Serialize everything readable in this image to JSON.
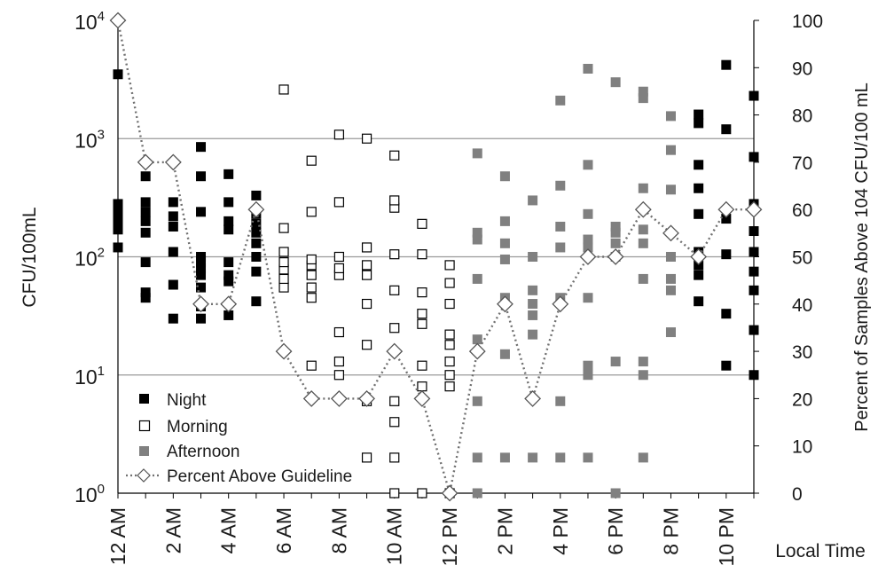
{
  "chart_data": {
    "type": "scatter",
    "title": "",
    "ylabel": "CFU/100mL",
    "y2label": "Percent  of Samples Above 104 CFU/100 mL",
    "xlabel": "Local Time",
    "y_scale": "log",
    "ylim": [
      1,
      10000
    ],
    "y2lim": [
      0,
      100
    ],
    "grid": "horizontal at each decade",
    "legend_position": "bottom-left",
    "y_ticks": [
      {
        "base": "10",
        "exp": "0"
      },
      {
        "base": "10",
        "exp": "1"
      },
      {
        "base": "10",
        "exp": "2"
      },
      {
        "base": "10",
        "exp": "3"
      },
      {
        "base": "10",
        "exp": "4"
      }
    ],
    "y2_ticks": [
      "0",
      "10",
      "20",
      "30",
      "40",
      "50",
      "60",
      "70",
      "80",
      "90",
      "100"
    ],
    "x_ticks": [
      "12 AM",
      "2 AM",
      "4 AM",
      "6 AM",
      "8 AM",
      "10 AM",
      "12 PM",
      "2 PM",
      "4 PM",
      "6 PM",
      "8 PM",
      "10 PM"
    ],
    "x_tick_hours": [
      0,
      2,
      4,
      6,
      8,
      10,
      12,
      14,
      16,
      18,
      20,
      22
    ],
    "x_range": [
      0,
      23
    ],
    "colors": {
      "night": "#000000",
      "morning": "#ffffff",
      "afternoon": "#808080",
      "percent_line": "#707070"
    },
    "series": [
      {
        "name": "Night",
        "marker": "filled-square",
        "points": [
          [
            0,
            3500
          ],
          [
            0,
            120
          ],
          [
            0,
            170
          ],
          [
            0,
            200
          ],
          [
            0,
            240
          ],
          [
            0,
            280
          ],
          [
            1,
            45
          ],
          [
            1,
            50
          ],
          [
            1,
            90
          ],
          [
            1,
            160
          ],
          [
            1,
            200
          ],
          [
            1,
            240
          ],
          [
            1,
            290
          ],
          [
            1,
            480
          ],
          [
            2,
            30
          ],
          [
            2,
            58
          ],
          [
            2,
            110
          ],
          [
            2,
            180
          ],
          [
            2,
            220
          ],
          [
            2,
            290
          ],
          [
            3,
            30
          ],
          [
            3,
            38
          ],
          [
            3,
            55
          ],
          [
            3,
            70
          ],
          [
            3,
            80
          ],
          [
            3,
            90
          ],
          [
            3,
            100
          ],
          [
            3,
            240
          ],
          [
            3,
            480
          ],
          [
            3,
            850
          ],
          [
            4,
            32
          ],
          [
            4,
            62
          ],
          [
            4,
            70
          ],
          [
            4,
            90
          ],
          [
            4,
            170
          ],
          [
            4,
            200
          ],
          [
            4,
            290
          ],
          [
            4,
            500
          ],
          [
            5,
            42
          ],
          [
            5,
            75
          ],
          [
            5,
            100
          ],
          [
            5,
            130
          ],
          [
            5,
            160
          ],
          [
            5,
            190
          ],
          [
            5,
            230
          ],
          [
            5,
            330
          ],
          [
            21,
            42
          ],
          [
            21,
            70
          ],
          [
            21,
            85
          ],
          [
            21,
            110
          ],
          [
            21,
            230
          ],
          [
            21,
            380
          ],
          [
            21,
            600
          ],
          [
            21,
            1350
          ],
          [
            21,
            1600
          ],
          [
            22,
            12
          ],
          [
            22,
            33
          ],
          [
            22,
            105
          ],
          [
            22,
            210
          ],
          [
            22,
            1200
          ],
          [
            22,
            4200
          ],
          [
            23,
            10
          ],
          [
            23,
            24
          ],
          [
            23,
            52
          ],
          [
            23,
            75
          ],
          [
            23,
            110
          ],
          [
            23,
            165
          ],
          [
            23,
            280
          ],
          [
            23,
            700
          ],
          [
            23,
            2300
          ]
        ]
      },
      {
        "name": "Morning",
        "marker": "open-square",
        "points": [
          [
            6,
            55
          ],
          [
            6,
            65
          ],
          [
            6,
            78
          ],
          [
            6,
            90
          ],
          [
            6,
            110
          ],
          [
            6,
            175
          ],
          [
            6,
            2600
          ],
          [
            7,
            12
          ],
          [
            7,
            45
          ],
          [
            7,
            55
          ],
          [
            7,
            70
          ],
          [
            7,
            85
          ],
          [
            7,
            95
          ],
          [
            7,
            240
          ],
          [
            7,
            650
          ],
          [
            8,
            10
          ],
          [
            8,
            13
          ],
          [
            8,
            23
          ],
          [
            8,
            70
          ],
          [
            8,
            80
          ],
          [
            8,
            100
          ],
          [
            8,
            290
          ],
          [
            8,
            1080
          ],
          [
            9,
            2
          ],
          [
            9,
            6
          ],
          [
            9,
            18
          ],
          [
            9,
            40
          ],
          [
            9,
            70
          ],
          [
            9,
            85
          ],
          [
            9,
            120
          ],
          [
            9,
            1000
          ],
          [
            10,
            1
          ],
          [
            10,
            2
          ],
          [
            10,
            4
          ],
          [
            10,
            6
          ],
          [
            10,
            25
          ],
          [
            10,
            52
          ],
          [
            10,
            105
          ],
          [
            10,
            260
          ],
          [
            10,
            300
          ],
          [
            10,
            720
          ],
          [
            11,
            1
          ],
          [
            11,
            8
          ],
          [
            11,
            12
          ],
          [
            11,
            27
          ],
          [
            11,
            33
          ],
          [
            11,
            50
          ],
          [
            11,
            105
          ],
          [
            11,
            190
          ],
          [
            12,
            1
          ],
          [
            12,
            8
          ],
          [
            12,
            10
          ],
          [
            12,
            13
          ],
          [
            12,
            18
          ],
          [
            12,
            22
          ],
          [
            12,
            40
          ],
          [
            12,
            60
          ],
          [
            12,
            85
          ]
        ]
      },
      {
        "name": "Afternoon",
        "marker": "gray-square",
        "points": [
          [
            13,
            1
          ],
          [
            13,
            2
          ],
          [
            13,
            6
          ],
          [
            13,
            20
          ],
          [
            13,
            65
          ],
          [
            13,
            140
          ],
          [
            13,
            160
          ],
          [
            13,
            750
          ],
          [
            14,
            2
          ],
          [
            14,
            15
          ],
          [
            14,
            45
          ],
          [
            14,
            95
          ],
          [
            14,
            130
          ],
          [
            14,
            200
          ],
          [
            14,
            480
          ],
          [
            15,
            2
          ],
          [
            15,
            22
          ],
          [
            15,
            32
          ],
          [
            15,
            40
          ],
          [
            15,
            52
          ],
          [
            15,
            100
          ],
          [
            15,
            300
          ],
          [
            16,
            2
          ],
          [
            16,
            6
          ],
          [
            16,
            45
          ],
          [
            16,
            120
          ],
          [
            16,
            180
          ],
          [
            16,
            400
          ],
          [
            16,
            2100
          ],
          [
            17,
            2
          ],
          [
            17,
            10
          ],
          [
            17,
            12
          ],
          [
            17,
            45
          ],
          [
            17,
            120
          ],
          [
            17,
            140
          ],
          [
            17,
            230
          ],
          [
            17,
            600
          ],
          [
            17,
            3900
          ],
          [
            18,
            1
          ],
          [
            18,
            13
          ],
          [
            18,
            100
          ],
          [
            18,
            130
          ],
          [
            18,
            160
          ],
          [
            18,
            180
          ],
          [
            18,
            3000
          ],
          [
            19,
            2
          ],
          [
            19,
            10
          ],
          [
            19,
            13
          ],
          [
            19,
            65
          ],
          [
            19,
            130
          ],
          [
            19,
            170
          ],
          [
            19,
            380
          ],
          [
            19,
            2200
          ],
          [
            19,
            2500
          ],
          [
            20,
            23
          ],
          [
            20,
            52
          ],
          [
            20,
            65
          ],
          [
            20,
            100
          ],
          [
            20,
            370
          ],
          [
            20,
            800
          ],
          [
            20,
            1550
          ]
        ]
      }
    ],
    "percent_series": {
      "name": "Percent Above Guideline",
      "marker": "open-diamond",
      "line": "dotted",
      "axis": "right",
      "x": [
        0,
        1,
        2,
        3,
        4,
        5,
        6,
        7,
        8,
        9,
        10,
        11,
        12,
        13,
        14,
        15,
        16,
        17,
        18,
        19,
        20,
        21,
        22,
        23
      ],
      "values": [
        100,
        70,
        70,
        40,
        40,
        60,
        30,
        20,
        20,
        20,
        30,
        20,
        0,
        30,
        40,
        20,
        40,
        50,
        50,
        60,
        55,
        50,
        60,
        60
      ]
    }
  }
}
